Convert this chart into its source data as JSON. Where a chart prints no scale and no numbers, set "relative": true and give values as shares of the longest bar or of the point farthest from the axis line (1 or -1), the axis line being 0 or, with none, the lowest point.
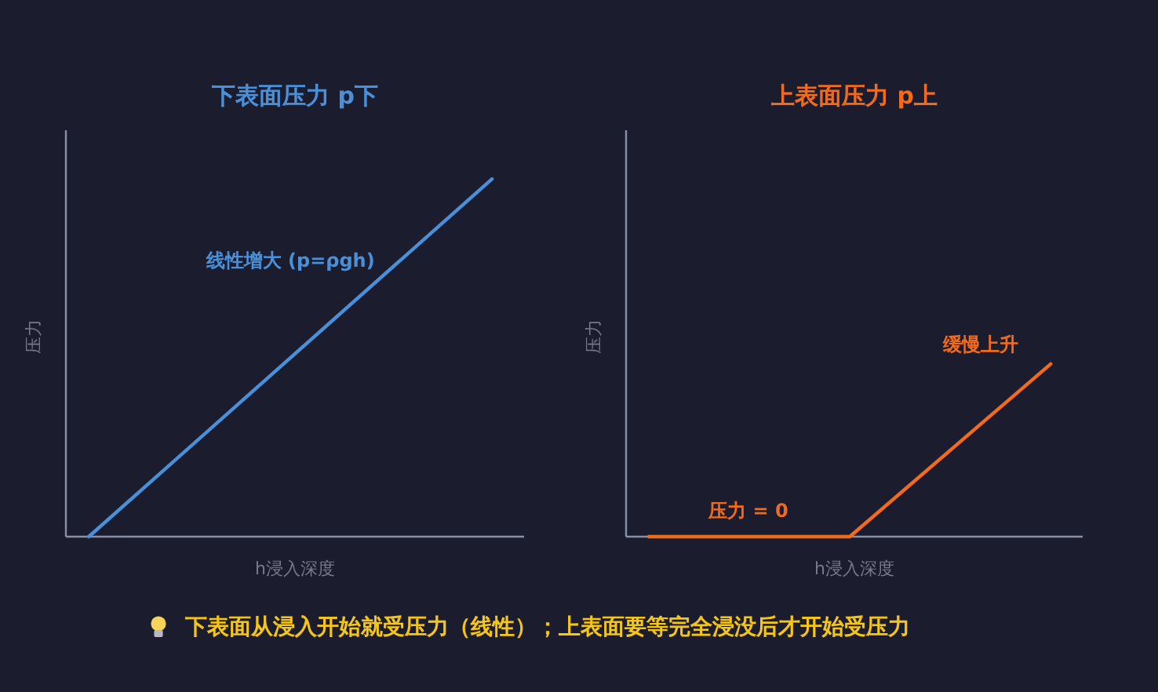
{
  "chart_data": [
    {
      "type": "line",
      "title": "下表面压力 p下",
      "xlabel": "h浸入深度",
      "ylabel": "压力",
      "categories": [
        null,
        null
      ],
      "relative": true,
      "series": [
        {
          "color": "#4a90d9",
          "values": [
            0,
            1
          ]
        }
      ],
      "annotations": [
        "线性增大 (p=ρgh)"
      ]
    },
    {
      "type": "line",
      "title": "上表面压力 p上",
      "xlabel": "h浸入深度",
      "ylabel": "压力",
      "categories": [
        null,
        null,
        null
      ],
      "relative": true,
      "series": [
        {
          "color": "#f26b1d",
          "values": [
            0,
            0,
            1
          ]
        }
      ],
      "annotations": [
        "压力 = 0",
        "缓慢上升"
      ]
    },
    {
      "type": "other",
      "annotations": [
        "下表面从浸入开始就受压力（线性）；上表面要等完全浸没后才开始受压力"
      ]
    }
  ]
}
